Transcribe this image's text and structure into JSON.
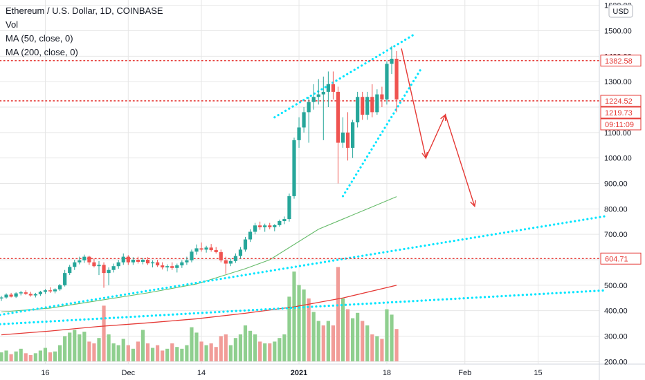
{
  "legend": {
    "title": "Ethereum / U.S. Dollar, 1D, COINBASE",
    "vol": "Vol",
    "ma50": "MA (50, close, 0)",
    "ma200": "MA (200, close, 0)"
  },
  "colors": {
    "up": "#26a69a",
    "up_light": "#a5d6a7",
    "down": "#ef5350",
    "down_light": "#ef9a9a",
    "volume_up": "#8fcf8f",
    "volume_down": "#f19c98",
    "ma50": "#66bb6a",
    "ma200": "#e53935",
    "level": "#e53935",
    "trendline": "#00e5ff",
    "arrow": "#e53935",
    "grid": "#e6e6e6",
    "axis_text": "#131722"
  },
  "chart_data": {
    "type": "candlestick",
    "title": "Ethereum / U.S. Dollar, 1D, COINBASE",
    "y_axis": {
      "unit": "USD",
      "ticks": [
        "1600.00",
        "1500.00",
        "1400.00",
        "1300.00",
        "1200.00",
        "1100.00",
        "1000.00",
        "900.00",
        "800.00",
        "700.00",
        "600.00",
        "500.00",
        "400.00",
        "300.00",
        "200.00"
      ],
      "range": [
        190,
        1610
      ]
    },
    "x_axis": {
      "ticks": [
        "16",
        "Dec",
        "14",
        "2021",
        "18",
        "Feb",
        "15"
      ]
    },
    "price_labels": [
      {
        "text": "1382.58",
        "value": 1382.58,
        "style": "outline"
      },
      {
        "text": "1224.52",
        "value": 1224.52,
        "style": "outline"
      },
      {
        "text": "1219.73",
        "value": 1219.73,
        "style": "outline"
      },
      {
        "text": "09:11:09",
        "value": 1180,
        "style": "outline"
      },
      {
        "text": "604.71",
        "value": 604.71,
        "style": "outline"
      }
    ],
    "levels": [
      1382.58,
      1224.52,
      604.71
    ],
    "candles": [
      {
        "o": 448,
        "h": 458,
        "l": 438,
        "c": 452
      },
      {
        "o": 452,
        "h": 468,
        "l": 447,
        "c": 463
      },
      {
        "o": 463,
        "h": 470,
        "l": 452,
        "c": 455
      },
      {
        "o": 455,
        "h": 472,
        "l": 450,
        "c": 468
      },
      {
        "o": 468,
        "h": 478,
        "l": 460,
        "c": 472
      },
      {
        "o": 472,
        "h": 480,
        "l": 462,
        "c": 466
      },
      {
        "o": 466,
        "h": 474,
        "l": 455,
        "c": 460
      },
      {
        "o": 460,
        "h": 470,
        "l": 452,
        "c": 465
      },
      {
        "o": 465,
        "h": 478,
        "l": 458,
        "c": 474
      },
      {
        "o": 474,
        "h": 485,
        "l": 466,
        "c": 480
      },
      {
        "o": 480,
        "h": 492,
        "l": 470,
        "c": 476
      },
      {
        "o": 476,
        "h": 488,
        "l": 468,
        "c": 484
      },
      {
        "o": 484,
        "h": 505,
        "l": 478,
        "c": 500
      },
      {
        "o": 500,
        "h": 560,
        "l": 495,
        "c": 548
      },
      {
        "o": 548,
        "h": 580,
        "l": 540,
        "c": 572
      },
      {
        "o": 572,
        "h": 600,
        "l": 560,
        "c": 590
      },
      {
        "o": 590,
        "h": 612,
        "l": 582,
        "c": 598
      },
      {
        "o": 598,
        "h": 620,
        "l": 588,
        "c": 612
      },
      {
        "o": 612,
        "h": 616,
        "l": 580,
        "c": 590
      },
      {
        "o": 590,
        "h": 605,
        "l": 570,
        "c": 575
      },
      {
        "o": 575,
        "h": 595,
        "l": 540,
        "c": 580
      },
      {
        "o": 580,
        "h": 590,
        "l": 490,
        "c": 548
      },
      {
        "o": 548,
        "h": 570,
        "l": 500,
        "c": 560
      },
      {
        "o": 560,
        "h": 585,
        "l": 550,
        "c": 575
      },
      {
        "o": 575,
        "h": 600,
        "l": 565,
        "c": 590
      },
      {
        "o": 590,
        "h": 625,
        "l": 580,
        "c": 612
      },
      {
        "o": 612,
        "h": 618,
        "l": 580,
        "c": 590
      },
      {
        "o": 590,
        "h": 610,
        "l": 580,
        "c": 600
      },
      {
        "o": 600,
        "h": 612,
        "l": 585,
        "c": 592
      },
      {
        "o": 592,
        "h": 608,
        "l": 582,
        "c": 600
      },
      {
        "o": 600,
        "h": 610,
        "l": 580,
        "c": 586
      },
      {
        "o": 586,
        "h": 598,
        "l": 570,
        "c": 590
      },
      {
        "o": 590,
        "h": 600,
        "l": 572,
        "c": 578
      },
      {
        "o": 578,
        "h": 590,
        "l": 562,
        "c": 570
      },
      {
        "o": 570,
        "h": 582,
        "l": 555,
        "c": 575
      },
      {
        "o": 575,
        "h": 590,
        "l": 560,
        "c": 568
      },
      {
        "o": 568,
        "h": 585,
        "l": 550,
        "c": 578
      },
      {
        "o": 578,
        "h": 598,
        "l": 568,
        "c": 590
      },
      {
        "o": 590,
        "h": 612,
        "l": 580,
        "c": 598
      },
      {
        "o": 598,
        "h": 640,
        "l": 590,
        "c": 632
      },
      {
        "o": 632,
        "h": 660,
        "l": 620,
        "c": 645
      },
      {
        "o": 645,
        "h": 668,
        "l": 632,
        "c": 640
      },
      {
        "o": 640,
        "h": 655,
        "l": 628,
        "c": 648
      },
      {
        "o": 648,
        "h": 662,
        "l": 632,
        "c": 638
      },
      {
        "o": 638,
        "h": 650,
        "l": 625,
        "c": 630
      },
      {
        "o": 630,
        "h": 640,
        "l": 590,
        "c": 598
      },
      {
        "o": 598,
        "h": 612,
        "l": 545,
        "c": 585
      },
      {
        "o": 585,
        "h": 605,
        "l": 575,
        "c": 595
      },
      {
        "o": 595,
        "h": 625,
        "l": 588,
        "c": 615
      },
      {
        "o": 615,
        "h": 650,
        "l": 605,
        "c": 640
      },
      {
        "o": 640,
        "h": 690,
        "l": 632,
        "c": 680
      },
      {
        "o": 680,
        "h": 720,
        "l": 670,
        "c": 710
      },
      {
        "o": 710,
        "h": 745,
        "l": 700,
        "c": 735
      },
      {
        "o": 735,
        "h": 750,
        "l": 718,
        "c": 728
      },
      {
        "o": 728,
        "h": 742,
        "l": 710,
        "c": 735
      },
      {
        "o": 735,
        "h": 745,
        "l": 720,
        "c": 728
      },
      {
        "o": 728,
        "h": 740,
        "l": 712,
        "c": 736
      },
      {
        "o": 736,
        "h": 758,
        "l": 730,
        "c": 752
      },
      {
        "o": 752,
        "h": 770,
        "l": 740,
        "c": 760
      },
      {
        "o": 760,
        "h": 860,
        "l": 750,
        "c": 850
      },
      {
        "o": 850,
        "h": 1080,
        "l": 840,
        "c": 1070
      },
      {
        "o": 1070,
        "h": 1160,
        "l": 1040,
        "c": 1120
      },
      {
        "o": 1120,
        "h": 1200,
        "l": 1100,
        "c": 1180
      },
      {
        "o": 1180,
        "h": 1240,
        "l": 1060,
        "c": 1220
      },
      {
        "o": 1220,
        "h": 1290,
        "l": 1190,
        "c": 1240
      },
      {
        "o": 1240,
        "h": 1310,
        "l": 1210,
        "c": 1250
      },
      {
        "o": 1250,
        "h": 1320,
        "l": 1070,
        "c": 1260
      },
      {
        "o": 1260,
        "h": 1340,
        "l": 1200,
        "c": 1290
      },
      {
        "o": 1290,
        "h": 1340,
        "l": 1230,
        "c": 1260
      },
      {
        "o": 1260,
        "h": 1280,
        "l": 900,
        "c": 1060
      },
      {
        "o": 1060,
        "h": 1160,
        "l": 1040,
        "c": 1100
      },
      {
        "o": 1100,
        "h": 1180,
        "l": 990,
        "c": 1040
      },
      {
        "o": 1040,
        "h": 1150,
        "l": 1000,
        "c": 1140
      },
      {
        "o": 1140,
        "h": 1260,
        "l": 1120,
        "c": 1240
      },
      {
        "o": 1240,
        "h": 1260,
        "l": 1150,
        "c": 1170
      },
      {
        "o": 1170,
        "h": 1260,
        "l": 1150,
        "c": 1240
      },
      {
        "o": 1240,
        "h": 1290,
        "l": 1160,
        "c": 1180
      },
      {
        "o": 1180,
        "h": 1270,
        "l": 1170,
        "c": 1250
      },
      {
        "o": 1250,
        "h": 1280,
        "l": 1200,
        "c": 1230
      },
      {
        "o": 1230,
        "h": 1380,
        "l": 1210,
        "c": 1370
      },
      {
        "o": 1370,
        "h": 1440,
        "l": 1330,
        "c": 1390
      },
      {
        "o": 1390,
        "h": 1420,
        "l": 1180,
        "c": 1230
      }
    ],
    "volume": [
      {
        "v": 0.1,
        "up": true
      },
      {
        "v": 0.12,
        "up": true
      },
      {
        "v": 0.08,
        "up": false
      },
      {
        "v": 0.11,
        "up": true
      },
      {
        "v": 0.14,
        "up": true
      },
      {
        "v": 0.09,
        "up": false
      },
      {
        "v": 0.07,
        "up": false
      },
      {
        "v": 0.09,
        "up": true
      },
      {
        "v": 0.12,
        "up": true
      },
      {
        "v": 0.15,
        "up": true
      },
      {
        "v": 0.1,
        "up": false
      },
      {
        "v": 0.11,
        "up": true
      },
      {
        "v": 0.18,
        "up": true
      },
      {
        "v": 0.28,
        "up": true
      },
      {
        "v": 0.32,
        "up": true
      },
      {
        "v": 0.35,
        "up": true
      },
      {
        "v": 0.3,
        "up": true
      },
      {
        "v": 0.33,
        "up": true
      },
      {
        "v": 0.22,
        "up": false
      },
      {
        "v": 0.2,
        "up": false
      },
      {
        "v": 0.26,
        "up": true
      },
      {
        "v": 0.62,
        "up": false
      },
      {
        "v": 0.3,
        "up": true
      },
      {
        "v": 0.2,
        "up": true
      },
      {
        "v": 0.18,
        "up": true
      },
      {
        "v": 0.25,
        "up": true
      },
      {
        "v": 0.18,
        "up": false
      },
      {
        "v": 0.14,
        "up": true
      },
      {
        "v": 0.22,
        "up": false
      },
      {
        "v": 0.35,
        "up": true
      },
      {
        "v": 0.2,
        "up": false
      },
      {
        "v": 0.15,
        "up": true
      },
      {
        "v": 0.18,
        "up": false
      },
      {
        "v": 0.12,
        "up": false
      },
      {
        "v": 0.14,
        "up": true
      },
      {
        "v": 0.2,
        "up": false
      },
      {
        "v": 0.16,
        "up": true
      },
      {
        "v": 0.14,
        "up": true
      },
      {
        "v": 0.18,
        "up": true
      },
      {
        "v": 0.38,
        "up": true
      },
      {
        "v": 0.32,
        "up": true
      },
      {
        "v": 0.22,
        "up": false
      },
      {
        "v": 0.18,
        "up": true
      },
      {
        "v": 0.2,
        "up": false
      },
      {
        "v": 0.16,
        "up": false
      },
      {
        "v": 0.28,
        "up": false
      },
      {
        "v": 0.3,
        "up": false
      },
      {
        "v": 0.18,
        "up": true
      },
      {
        "v": 0.26,
        "up": true
      },
      {
        "v": 0.3,
        "up": true
      },
      {
        "v": 0.4,
        "up": true
      },
      {
        "v": 0.34,
        "up": true
      },
      {
        "v": 0.3,
        "up": true
      },
      {
        "v": 0.22,
        "up": false
      },
      {
        "v": 0.2,
        "up": true
      },
      {
        "v": 0.2,
        "up": false
      },
      {
        "v": 0.22,
        "up": true
      },
      {
        "v": 0.26,
        "up": true
      },
      {
        "v": 0.3,
        "up": true
      },
      {
        "v": 0.72,
        "up": true
      },
      {
        "v": 1.0,
        "up": true
      },
      {
        "v": 0.85,
        "up": true
      },
      {
        "v": 0.8,
        "up": true
      },
      {
        "v": 0.7,
        "up": false
      },
      {
        "v": 0.55,
        "up": true
      },
      {
        "v": 0.45,
        "up": true
      },
      {
        "v": 0.4,
        "up": false
      },
      {
        "v": 0.45,
        "up": true
      },
      {
        "v": 0.4,
        "up": false
      },
      {
        "v": 1.05,
        "up": false
      },
      {
        "v": 0.7,
        "up": true
      },
      {
        "v": 0.58,
        "up": false
      },
      {
        "v": 0.48,
        "up": true
      },
      {
        "v": 0.54,
        "up": true
      },
      {
        "v": 0.45,
        "up": false
      },
      {
        "v": 0.4,
        "up": true
      },
      {
        "v": 0.3,
        "up": false
      },
      {
        "v": 0.28,
        "up": true
      },
      {
        "v": 0.25,
        "up": false
      },
      {
        "v": 0.58,
        "up": true
      },
      {
        "v": 0.52,
        "up": true
      },
      {
        "v": 0.36,
        "up": false
      }
    ],
    "ma50": [
      {
        "i": 0,
        "v": 395
      },
      {
        "i": 10,
        "v": 410
      },
      {
        "i": 20,
        "v": 440
      },
      {
        "i": 30,
        "v": 470
      },
      {
        "i": 40,
        "v": 505
      },
      {
        "i": 50,
        "v": 565
      },
      {
        "i": 55,
        "v": 600
      },
      {
        "i": 60,
        "v": 660
      },
      {
        "i": 65,
        "v": 720
      },
      {
        "i": 70,
        "v": 760
      },
      {
        "i": 75,
        "v": 800
      },
      {
        "i": 81,
        "v": 848
      }
    ],
    "ma200": [
      {
        "i": 0,
        "v": 305
      },
      {
        "i": 10,
        "v": 320
      },
      {
        "i": 20,
        "v": 338
      },
      {
        "i": 30,
        "v": 352
      },
      {
        "i": 40,
        "v": 368
      },
      {
        "i": 50,
        "v": 390
      },
      {
        "i": 60,
        "v": 415
      },
      {
        "i": 70,
        "v": 450
      },
      {
        "i": 81,
        "v": 500
      }
    ],
    "trendlines": [
      {
        "from": {
          "i": -2,
          "v": 378
        },
        "to": {
          "i": 124,
          "v": 772
        }
      },
      {
        "from": {
          "i": -2,
          "v": 345
        },
        "to": {
          "i": 124,
          "v": 480
        }
      },
      {
        "from": {
          "i": 56,
          "v": 1160
        },
        "to": {
          "i": 85,
          "v": 1490
        }
      },
      {
        "from": {
          "i": 70,
          "v": 850
        },
        "to": {
          "i": 86,
          "v": 1350
        }
      }
    ],
    "arrow_path": [
      {
        "i": 82,
        "v": 1430
      },
      {
        "i": 87,
        "v": 1000
      },
      {
        "i": 91,
        "v": 1170
      },
      {
        "i": 97,
        "v": 810
      }
    ]
  }
}
